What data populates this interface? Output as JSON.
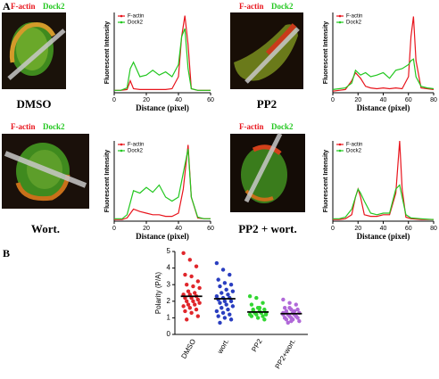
{
  "panel_labels": [
    "A",
    "B"
  ],
  "chart_data": [
    {
      "type": "line",
      "caption": "DMSO",
      "ylabel": "Fluorescent Intensity",
      "xlabel": "Distance (pixel)",
      "x": [
        0,
        4,
        8,
        10,
        12,
        16,
        20,
        24,
        28,
        32,
        36,
        40,
        42,
        44,
        46,
        48,
        52,
        56,
        60
      ],
      "xlim": [
        0,
        60
      ],
      "xticks": [
        0,
        20,
        40,
        60
      ],
      "ylim": [
        0,
        100
      ],
      "series": [
        {
          "name": "F-actin",
          "color": "#e8141c",
          "values": [
            3,
            3,
            4,
            15,
            5,
            4,
            4,
            4,
            4,
            4,
            5,
            20,
            70,
            96,
            60,
            5,
            3,
            3,
            3
          ]
        },
        {
          "name": "Dock2",
          "color": "#22c71f",
          "values": [
            3,
            3,
            6,
            30,
            38,
            20,
            22,
            28,
            22,
            26,
            20,
            35,
            70,
            80,
            30,
            5,
            3,
            3,
            3
          ]
        }
      ]
    },
    {
      "type": "line",
      "caption": "PP2",
      "ylabel": "Fluorescent Intensity",
      "xlabel": "Distance (pixel)",
      "x": [
        0,
        5,
        10,
        15,
        18,
        22,
        26,
        30,
        35,
        40,
        45,
        50,
        55,
        60,
        62,
        64,
        66,
        70,
        75,
        80
      ],
      "xlim": [
        0,
        80
      ],
      "xticks": [
        0,
        20,
        40,
        60,
        80
      ],
      "ylim": [
        0,
        100
      ],
      "series": [
        {
          "name": "F-actin",
          "color": "#e8141c",
          "values": [
            2,
            3,
            4,
            15,
            25,
            18,
            8,
            6,
            5,
            6,
            5,
            6,
            5,
            20,
            70,
            95,
            40,
            6,
            5,
            4
          ]
        },
        {
          "name": "Dock2",
          "color": "#22c71f",
          "values": [
            4,
            5,
            6,
            12,
            28,
            22,
            25,
            20,
            22,
            25,
            18,
            28,
            30,
            35,
            40,
            42,
            20,
            8,
            6,
            5
          ]
        }
      ]
    },
    {
      "type": "line",
      "caption": "Wort.",
      "ylabel": "Fluorescent Intensity",
      "xlabel": "Distance (pixel)",
      "x": [
        0,
        5,
        8,
        12,
        16,
        20,
        24,
        28,
        32,
        36,
        40,
        43,
        46,
        48,
        52,
        56,
        60
      ],
      "xlim": [
        0,
        60
      ],
      "xticks": [
        0,
        20,
        40,
        60
      ],
      "ylim": [
        0,
        100
      ],
      "series": [
        {
          "name": "F-actin",
          "color": "#e8141c",
          "values": [
            2,
            2,
            4,
            15,
            12,
            10,
            8,
            8,
            6,
            6,
            10,
            40,
            95,
            30,
            4,
            3,
            3
          ]
        },
        {
          "name": "Dock2",
          "color": "#22c71f",
          "values": [
            3,
            3,
            8,
            38,
            35,
            42,
            36,
            45,
            30,
            25,
            30,
            60,
            90,
            30,
            5,
            3,
            3
          ]
        }
      ]
    },
    {
      "type": "line",
      "caption": "PP2 + wort.",
      "ylabel": "Fluorescent Intensity",
      "xlabel": "Distance (pixel)",
      "x": [
        0,
        5,
        10,
        15,
        18,
        20,
        22,
        25,
        30,
        35,
        40,
        45,
        50,
        53,
        55,
        58,
        62,
        70,
        80
      ],
      "xlim": [
        0,
        80
      ],
      "xticks": [
        0,
        20,
        40,
        60,
        80
      ],
      "ylim": [
        0,
        100
      ],
      "series": [
        {
          "name": "F-actin",
          "color": "#e8141c",
          "values": [
            2,
            2,
            3,
            8,
            30,
            40,
            30,
            8,
            6,
            6,
            8,
            8,
            35,
            100,
            40,
            5,
            3,
            2,
            2
          ]
        },
        {
          "name": "Dock2",
          "color": "#22c71f",
          "values": [
            3,
            3,
            5,
            15,
            30,
            40,
            35,
            25,
            10,
            8,
            10,
            10,
            40,
            45,
            30,
            8,
            4,
            3,
            2
          ]
        }
      ]
    },
    {
      "type": "strip",
      "ylabel": "Polarity (P/A)",
      "categories": [
        "DMSO",
        "wort.",
        "PP2",
        "PP2+wort."
      ],
      "ylim": [
        0,
        5
      ],
      "yticks": [
        0,
        1,
        2,
        3,
        4,
        5
      ],
      "series": [
        {
          "color": "#e0262b",
          "mean": 2.3,
          "values": [
            4.9,
            4.5,
            4.1,
            3.6,
            3.5,
            3.2,
            3.0,
            2.9,
            2.8,
            2.6,
            2.5,
            2.4,
            2.4,
            2.3,
            2.2,
            2.2,
            2.1,
            2.0,
            2.0,
            1.9,
            1.8,
            1.8,
            1.7,
            1.6,
            1.5,
            1.4,
            1.3,
            1.1,
            0.9
          ]
        },
        {
          "color": "#2a3ec0",
          "mean": 2.15,
          "values": [
            4.3,
            3.9,
            3.6,
            3.3,
            3.1,
            3.0,
            2.9,
            2.7,
            2.6,
            2.5,
            2.4,
            2.3,
            2.2,
            2.2,
            2.1,
            2.0,
            2.0,
            1.9,
            1.8,
            1.7,
            1.6,
            1.5,
            1.4,
            1.3,
            1.2,
            1.1,
            1.0,
            0.9,
            0.7
          ]
        },
        {
          "color": "#33d633",
          "mean": 1.35,
          "values": [
            2.3,
            2.2,
            1.9,
            1.8,
            1.6,
            1.5,
            1.4,
            1.4,
            1.3,
            1.3,
            1.3,
            1.2,
            1.2,
            1.1,
            1.1,
            1.0,
            0.9,
            1.5,
            1.6,
            1.2
          ]
        },
        {
          "color": "#b068d8",
          "mean": 1.25,
          "values": [
            2.1,
            1.9,
            1.8,
            1.6,
            1.5,
            1.5,
            1.4,
            1.3,
            1.3,
            1.2,
            1.2,
            1.2,
            1.1,
            1.1,
            1.0,
            1.0,
            1.0,
            0.9,
            0.9,
            0.8,
            0.7,
            1.4,
            1.3,
            1.6,
            1.1,
            1.0,
            0.8
          ]
        }
      ]
    }
  ]
}
